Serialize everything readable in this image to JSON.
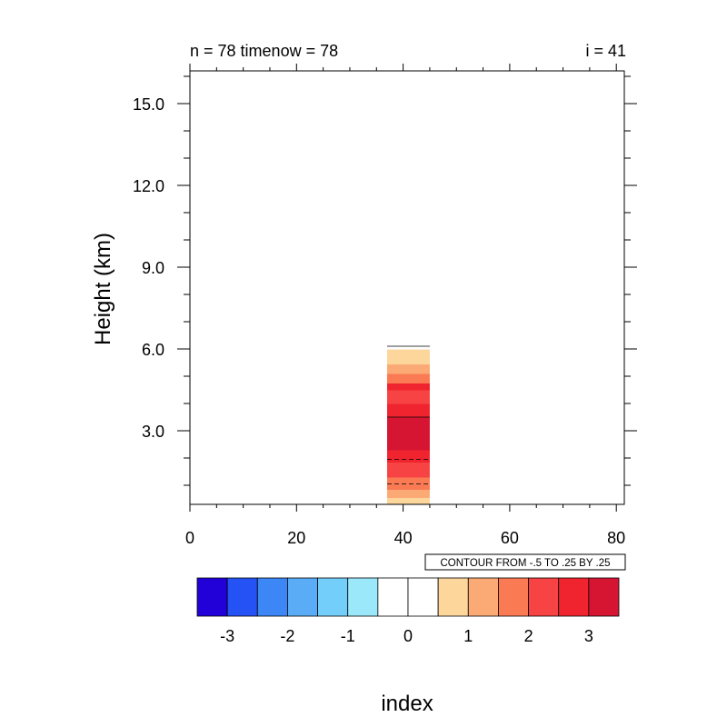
{
  "chart_data": {
    "type": "heatmap",
    "title_left": "n = 78 timenow = 78",
    "title_right": "i = 41",
    "ylabel": "Height (km)",
    "xlabel": "index",
    "xlim": [
      0,
      81.5
    ],
    "ylim": [
      0.3,
      16.2
    ],
    "x_ticks": [
      0,
      20,
      40,
      60,
      80
    ],
    "x_tick_labels": [
      "0",
      "20",
      "40",
      "60",
      "80"
    ],
    "y_ticks": [
      3.0,
      6.0,
      9.0,
      12.0,
      15.0
    ],
    "y_tick_labels": [
      "3.0",
      "6.0",
      "9.0",
      "12.0",
      "15.0"
    ],
    "contour_info": "CONTOUR FROM -.5 TO .25 BY .25",
    "colorbar": {
      "colors": [
        "#2200d8",
        "#2452f5",
        "#3d86f6",
        "#5aacf6",
        "#73cffa",
        "#9ce8fb",
        "#ffffff",
        "#ffffff",
        "#fdd69c",
        "#fcaa75",
        "#fa7a53",
        "#f74343",
        "#f0242e",
        "#d51532"
      ],
      "labels": [
        "-3",
        "-2",
        "-1",
        "0",
        "1",
        "2",
        "3"
      ],
      "label_boundary_index": [
        1,
        3,
        5,
        7,
        9,
        11,
        13
      ]
    },
    "column": {
      "x_range": [
        37,
        45
      ],
      "layers": [
        {
          "y0": 0.3,
          "y1": 0.55,
          "value_color": "#fdd69c"
        },
        {
          "y0": 0.55,
          "y1": 0.85,
          "value_color": "#fcaa75"
        },
        {
          "y0": 0.85,
          "y1": 1.3,
          "value_color": "#fa7a53"
        },
        {
          "y0": 1.3,
          "y1": 1.85,
          "value_color": "#f74343"
        },
        {
          "y0": 1.85,
          "y1": 2.3,
          "value_color": "#f0242e"
        },
        {
          "y0": 2.3,
          "y1": 3.5,
          "value_color": "#d51532"
        },
        {
          "y0": 3.5,
          "y1": 4.0,
          "value_color": "#f0242e"
        },
        {
          "y0": 4.0,
          "y1": 4.5,
          "value_color": "#f74343"
        },
        {
          "y0": 4.5,
          "y1": 4.75,
          "value_color": "#f0242e"
        },
        {
          "y0": 4.75,
          "y1": 5.1,
          "value_color": "#fa7a53"
        },
        {
          "y0": 5.1,
          "y1": 5.45,
          "value_color": "#fcaa75"
        },
        {
          "y0": 5.45,
          "y1": 5.98,
          "value_color": "#fdd69c"
        }
      ],
      "contours": [
        {
          "y": 1.05,
          "style": "dashed"
        },
        {
          "y": 1.95,
          "style": "dashed"
        },
        {
          "y": 3.5,
          "style": "solid"
        },
        {
          "y": 6.1,
          "style": "solid"
        }
      ]
    }
  }
}
